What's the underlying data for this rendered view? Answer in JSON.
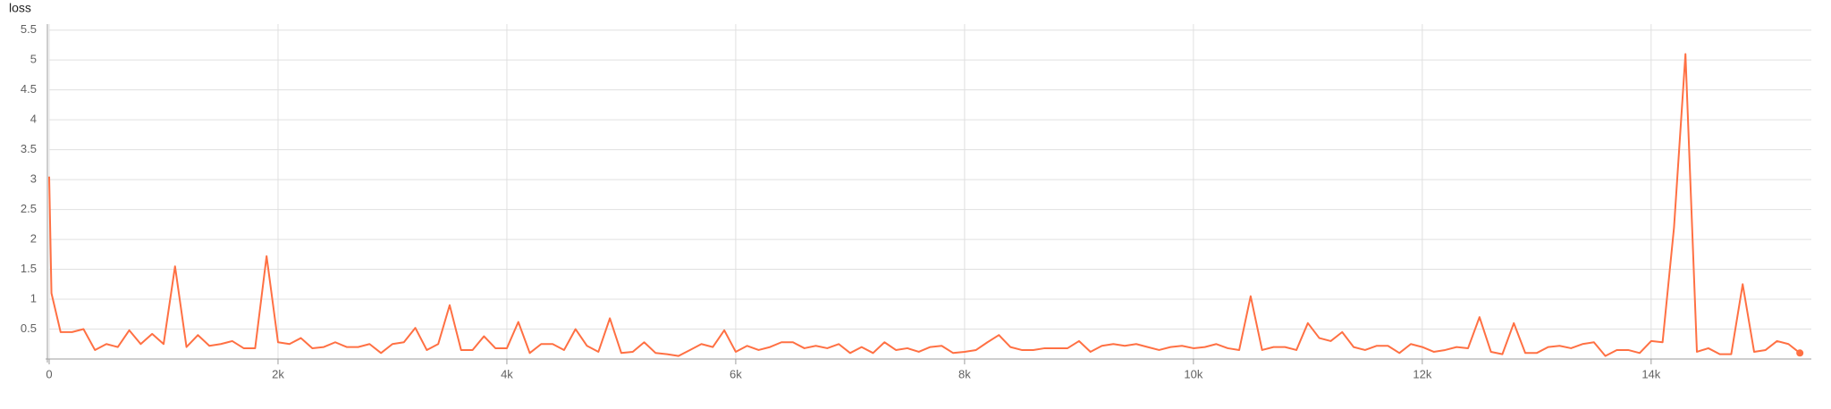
{
  "chart_data": {
    "type": "line",
    "title": "loss",
    "xlim": [
      0,
      15400
    ],
    "ylim": [
      0,
      5.6
    ],
    "xticks": [
      0,
      {
        "value": 2000,
        "label": "2k"
      },
      {
        "value": 4000,
        "label": "4k"
      },
      {
        "value": 6000,
        "label": "6k"
      },
      {
        "value": 8000,
        "label": "8k"
      },
      {
        "value": 10000,
        "label": "10k"
      },
      {
        "value": 12000,
        "label": "12k"
      },
      {
        "value": 14000,
        "label": "14k"
      }
    ],
    "yticks": [
      0.5,
      1,
      1.5,
      2,
      2.5,
      3,
      3.5,
      4,
      4.5,
      5,
      5.5
    ],
    "grid": true,
    "series": [
      {
        "name": "loss",
        "color": "#ff7043",
        "x": [
          0,
          20,
          100,
          200,
          300,
          400,
          500,
          600,
          700,
          800,
          900,
          1000,
          1100,
          1200,
          1300,
          1400,
          1500,
          1600,
          1700,
          1800,
          1900,
          2000,
          2100,
          2200,
          2300,
          2400,
          2500,
          2600,
          2700,
          2800,
          2900,
          3000,
          3100,
          3200,
          3300,
          3400,
          3500,
          3600,
          3700,
          3800,
          3900,
          4000,
          4100,
          4200,
          4300,
          4400,
          4500,
          4600,
          4700,
          4800,
          4900,
          5000,
          5100,
          5200,
          5300,
          5400,
          5500,
          5600,
          5700,
          5800,
          5900,
          6000,
          6100,
          6200,
          6300,
          6400,
          6500,
          6600,
          6700,
          6800,
          6900,
          7000,
          7100,
          7200,
          7300,
          7400,
          7500,
          7600,
          7700,
          7800,
          7900,
          8000,
          8100,
          8200,
          8300,
          8400,
          8500,
          8600,
          8700,
          8800,
          8900,
          9000,
          9100,
          9200,
          9300,
          9400,
          9500,
          9600,
          9700,
          9800,
          9900,
          10000,
          10100,
          10200,
          10300,
          10400,
          10500,
          10600,
          10700,
          10800,
          10900,
          11000,
          11100,
          11200,
          11300,
          11400,
          11500,
          11600,
          11700,
          11800,
          11900,
          12000,
          12100,
          12200,
          12300,
          12400,
          12500,
          12600,
          12700,
          12800,
          12900,
          13000,
          13100,
          13200,
          13300,
          13400,
          13500,
          13600,
          13700,
          13800,
          13900,
          14000,
          14100,
          14200,
          14300,
          14400,
          14500,
          14600,
          14700,
          14800,
          14900,
          15000,
          15100,
          15200,
          15300
        ],
        "values": [
          3.05,
          1.1,
          0.45,
          0.45,
          0.5,
          0.15,
          0.25,
          0.2,
          0.48,
          0.25,
          0.42,
          0.25,
          1.55,
          0.2,
          0.4,
          0.22,
          0.25,
          0.3,
          0.18,
          0.18,
          1.72,
          0.28,
          0.25,
          0.35,
          0.18,
          0.2,
          0.28,
          0.2,
          0.2,
          0.25,
          0.1,
          0.25,
          0.28,
          0.52,
          0.15,
          0.25,
          0.9,
          0.15,
          0.15,
          0.38,
          0.18,
          0.18,
          0.62,
          0.1,
          0.25,
          0.25,
          0.15,
          0.5,
          0.22,
          0.12,
          0.68,
          0.1,
          0.12,
          0.28,
          0.1,
          0.08,
          0.05,
          0.15,
          0.25,
          0.2,
          0.48,
          0.12,
          0.22,
          0.15,
          0.2,
          0.28,
          0.28,
          0.18,
          0.22,
          0.18,
          0.25,
          0.1,
          0.2,
          0.1,
          0.28,
          0.15,
          0.18,
          0.12,
          0.2,
          0.22,
          0.1,
          0.12,
          0.15,
          0.28,
          0.4,
          0.2,
          0.15,
          0.15,
          0.18,
          0.18,
          0.18,
          0.3,
          0.12,
          0.22,
          0.25,
          0.22,
          0.25,
          0.2,
          0.15,
          0.2,
          0.22,
          0.18,
          0.2,
          0.25,
          0.18,
          0.15,
          1.05,
          0.15,
          0.2,
          0.2,
          0.15,
          0.6,
          0.35,
          0.3,
          0.45,
          0.2,
          0.15,
          0.22,
          0.22,
          0.1,
          0.25,
          0.2,
          0.12,
          0.15,
          0.2,
          0.18,
          0.7,
          0.12,
          0.08,
          0.6,
          0.1,
          0.1,
          0.2,
          0.22,
          0.18,
          0.25,
          0.28,
          0.05,
          0.15,
          0.15,
          0.1,
          0.3,
          0.28,
          2.2,
          5.1,
          0.12,
          0.18,
          0.08,
          0.08,
          1.25,
          0.12,
          0.15,
          0.3,
          0.25,
          0.1
        ]
      }
    ]
  }
}
